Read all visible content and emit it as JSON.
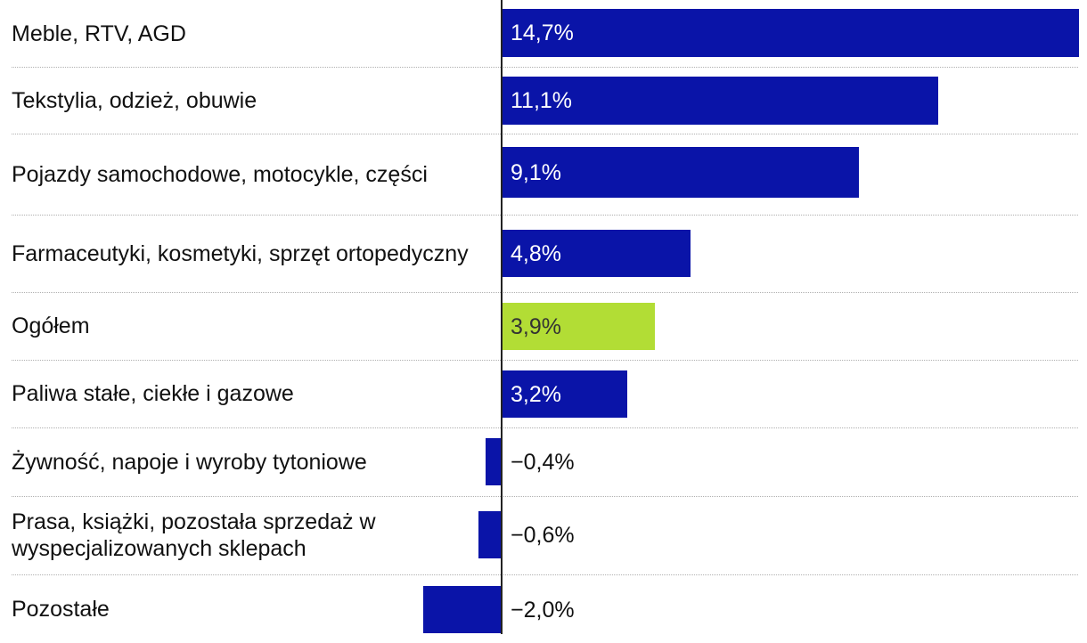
{
  "chart_data": {
    "type": "bar",
    "orientation": "horizontal",
    "categories": [
      "Meble, RTV, AGD",
      "Tekstylia, odzież, obuwie",
      "Pojazdy samochodowe, motocykle, części",
      "Farmaceutyki, kosmetyki, sprzęt ortopedyczny",
      "Ogółem",
      "Paliwa stałe, ciekłe i gazowe",
      "Żywność, napoje i wyroby tytoniowe",
      "Prasa, książki, pozostała sprzedaż w wyspecjalizowanych sklepach",
      "Pozostałe"
    ],
    "values": [
      14.7,
      11.1,
      9.1,
      4.8,
      3.9,
      3.2,
      -0.4,
      -0.6,
      -2.0
    ],
    "value_labels": [
      "14,7%",
      "11,1%",
      "9,1%",
      "4,8%",
      "3,9%",
      "3,2%",
      "−0,4%",
      "−0,6%",
      "−2,0%"
    ],
    "highlight_index": 4,
    "xlim": [
      -2.0,
      14.7
    ],
    "unit": "%",
    "title": "",
    "xlabel": "",
    "ylabel": "",
    "grid": false
  },
  "colors": {
    "bar": "#0a14a8",
    "highlight": "#b2dd35",
    "label_on_bar": "#ffffff",
    "label_on_highlight": "#333333",
    "label_outside": "#111111"
  }
}
